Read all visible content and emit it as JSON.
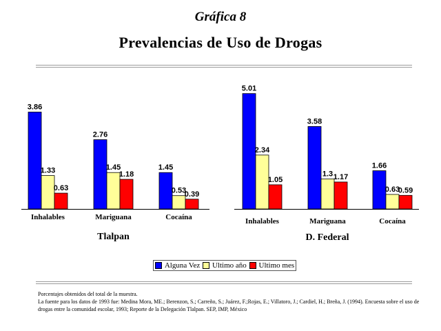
{
  "header": {
    "figure_label": "Gráfica 8",
    "title": "Prevalencias de Uso de Drogas"
  },
  "colors": {
    "alguna_vez": "#0000ff",
    "ultimo_anio": "#ffff99",
    "ultimo_mes": "#ff0000"
  },
  "legend": {
    "items": [
      "Alguna Vez",
      "Ultimo año",
      "Ultimo mes"
    ]
  },
  "chart_data": [
    {
      "type": "bar",
      "title": "Tlalpan",
      "categories": [
        "Inhalables",
        "Mariguana",
        "Cocaína"
      ],
      "series": [
        {
          "name": "Alguna Vez",
          "values": [
            3.86,
            2.76,
            1.45
          ],
          "labels": [
            "3.86",
            "2.76",
            "1.45"
          ]
        },
        {
          "name": "Ultimo año",
          "values": [
            1.33,
            1.45,
            0.53
          ],
          "labels": [
            "1.33",
            "1.45",
            "0.53"
          ]
        },
        {
          "name": "Ultimo mes",
          "values": [
            0.63,
            1.18,
            0.39
          ],
          "labels": [
            "0.63",
            "1.18",
            "0.39"
          ]
        }
      ],
      "ylim": [
        0,
        4.2
      ],
      "grid": false,
      "legend": "bottom"
    },
    {
      "type": "bar",
      "title": "D. Federal",
      "categories": [
        "Inhalables",
        "Mariguana",
        "Cocaína"
      ],
      "series": [
        {
          "name": "Alguna Vez",
          "values": [
            5.01,
            3.58,
            1.66
          ],
          "labels": [
            "5.01",
            "3.58",
            "1.66"
          ]
        },
        {
          "name": "Ultimo año",
          "values": [
            2.34,
            1.3,
            0.63
          ],
          "labels": [
            "2.34",
            "1.3",
            "0.63"
          ]
        },
        {
          "name": "Ultimo mes",
          "values": [
            1.05,
            1.17,
            0.59
          ],
          "labels": [
            "1.05",
            "1.17",
            "0.59"
          ]
        }
      ],
      "ylim": [
        0,
        5.4
      ],
      "grid": false,
      "legend": "bottom"
    }
  ],
  "notes": {
    "line1": "Porcentajes obtenidos del total de la muestra.",
    "line2": "La fuente para los datos de 1993 fue: Medina Mora, ME.; Berenzon, S.; Carreño, S.; Juárez, F.;Rojas, E.; Villatoro, J.; Cardiel, H.; Breña, J. (1994). Encuesta sobre el uso de drogas entre la comunidad escolar, 1993; Reporte de la Delegación Tlalpan. SEP, IMP, México"
  }
}
